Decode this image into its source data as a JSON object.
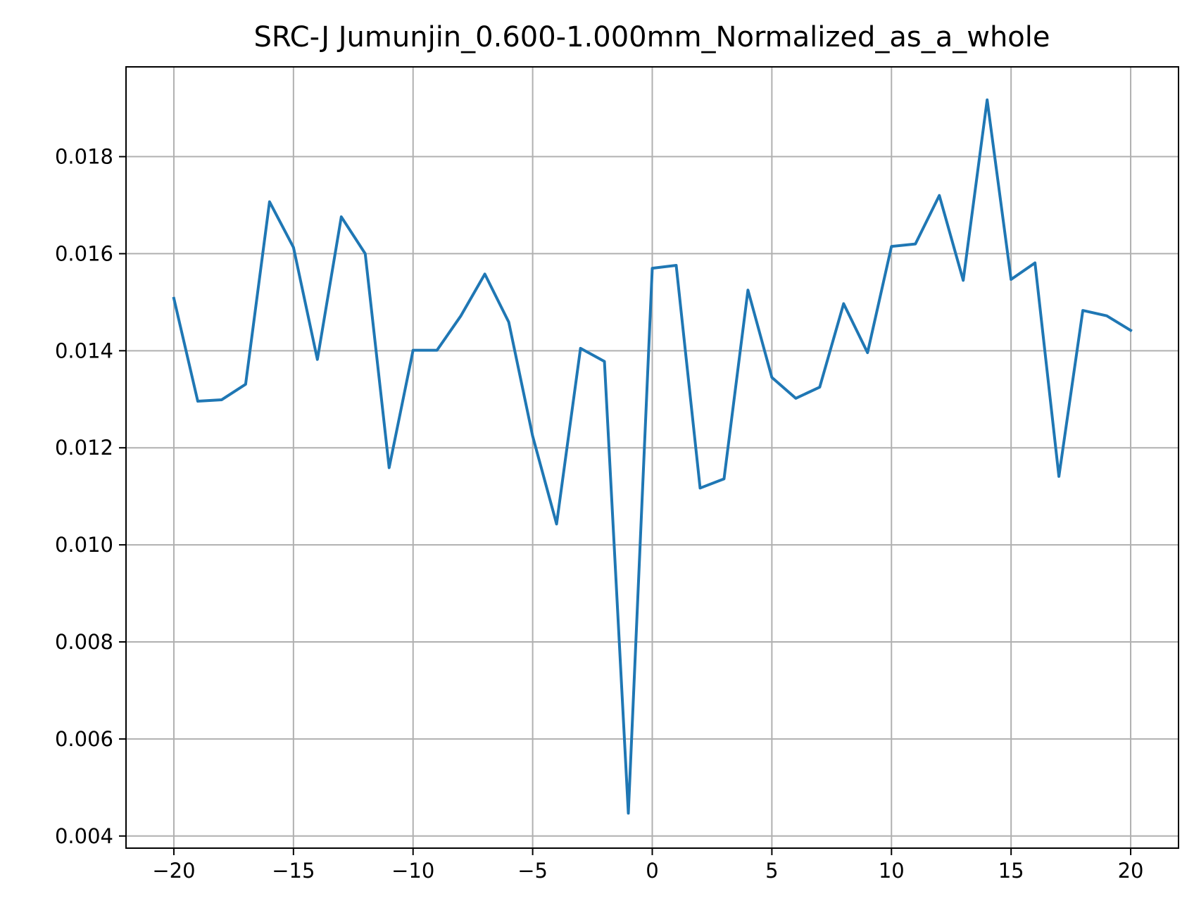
{
  "chart_data": {
    "type": "line",
    "title": "SRC-J Jumunjin_0.600-1.000mm_Normalized_as_a_whole",
    "xlabel": "",
    "ylabel": "",
    "xlim": [
      -22,
      22
    ],
    "ylim": [
      0.00375,
      0.01985
    ],
    "grid": true,
    "x_ticks": [
      -20,
      -15,
      -10,
      -5,
      0,
      5,
      10,
      15,
      20
    ],
    "x_tick_labels": [
      "−20",
      "−15",
      "−10",
      "−5",
      "0",
      "5",
      "10",
      "15",
      "20"
    ],
    "y_ticks": [
      0.004,
      0.006,
      0.008,
      0.01,
      0.012,
      0.014,
      0.016,
      0.018
    ],
    "y_tick_labels": [
      "0.004",
      "0.006",
      "0.008",
      "0.010",
      "0.012",
      "0.014",
      "0.016",
      "0.018"
    ],
    "series": [
      {
        "color": "#1f77b4",
        "x": [
          -20,
          -19,
          -18,
          -17,
          -16,
          -15,
          -14,
          -13,
          -12,
          -11,
          -10,
          -9,
          -8,
          -7,
          -6,
          -5,
          -4,
          -3,
          -2,
          -1,
          0,
          1,
          2,
          3,
          4,
          5,
          6,
          7,
          8,
          9,
          10,
          11,
          12,
          13,
          14,
          15,
          16,
          17,
          18,
          19,
          20
        ],
        "y": [
          0.01508,
          0.01296,
          0.01299,
          0.01331,
          0.01707,
          0.01613,
          0.01382,
          0.01676,
          0.016,
          0.01159,
          0.01401,
          0.01401,
          0.01472,
          0.01558,
          0.01459,
          0.01224,
          0.01043,
          0.01405,
          0.01378,
          0.00447,
          0.0157,
          0.01576,
          0.01117,
          0.01136,
          0.01525,
          0.01345,
          0.01302,
          0.01325,
          0.01497,
          0.01396,
          0.01615,
          0.0162,
          0.0172,
          0.01545,
          0.01917,
          0.01547,
          0.01581,
          0.01141,
          0.01483,
          0.01472,
          0.01442
        ]
      }
    ]
  }
}
